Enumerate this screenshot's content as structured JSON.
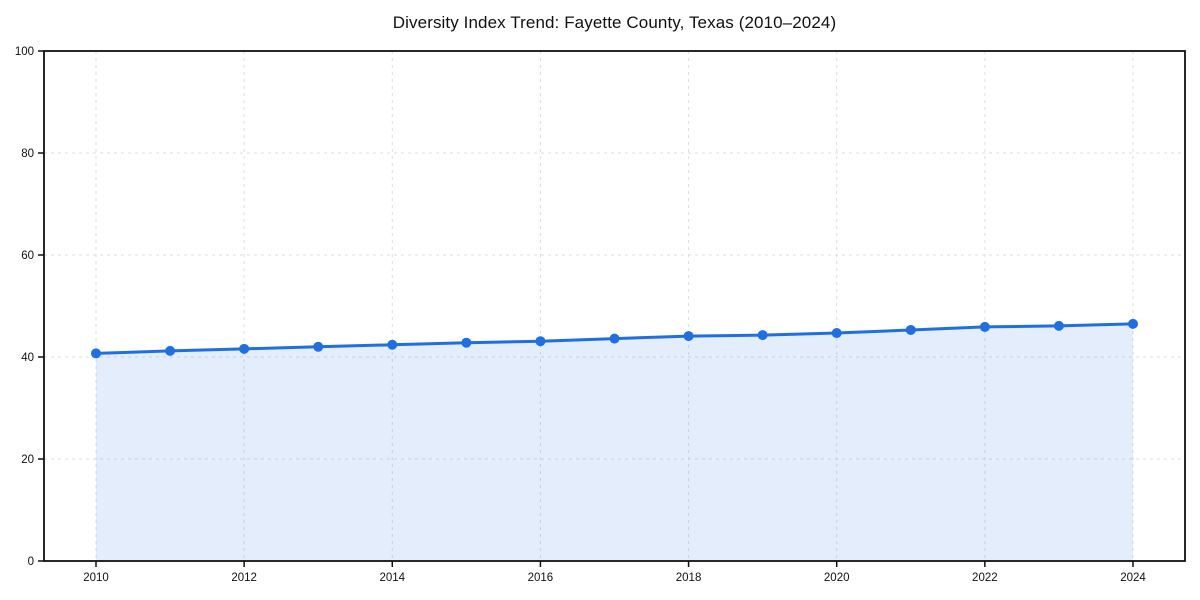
{
  "chart_data": {
    "type": "area",
    "title": "Diversity Index Trend: Fayette County, Texas (2010–2024)",
    "xlabel": "",
    "ylabel": "",
    "x": [
      2010,
      2011,
      2012,
      2013,
      2014,
      2015,
      2016,
      2017,
      2018,
      2019,
      2020,
      2021,
      2022,
      2023,
      2024
    ],
    "series": [
      {
        "name": "Diversity Index",
        "values": [
          40.7,
          41.2,
          41.6,
          42.0,
          42.4,
          42.8,
          43.1,
          43.6,
          44.1,
          44.3,
          44.7,
          45.3,
          45.9,
          46.1,
          46.5
        ]
      }
    ],
    "ylim": [
      0,
      100
    ],
    "yticks": [
      0,
      20,
      40,
      60,
      80,
      100
    ],
    "xticks": [
      2010,
      2012,
      2014,
      2016,
      2018,
      2020,
      2022,
      2024
    ],
    "grid": "dashed",
    "legend_position": "none",
    "colors": {
      "line": "#1f6fe0",
      "marker": "#1f6fe0",
      "fill": "#1f6fe0",
      "fill_opacity": "0.12",
      "grid": "#dedede",
      "spine": "#111111",
      "text": "#111111",
      "background": "#ffffff"
    }
  }
}
